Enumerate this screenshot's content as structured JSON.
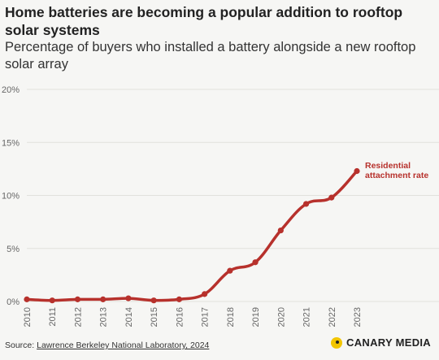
{
  "title": "Home batteries are becoming a popular addition to rooftop solar systems",
  "subtitle": "Percentage of buyers who installed a battery alongside a new rooftop solar array",
  "footer": {
    "source_label": "Source:",
    "source_link": "Lawrence Berkeley National Laboratory, 2024",
    "brand": "CANARY MEDIA"
  },
  "colors": {
    "line": "#b7312c",
    "grid": "#e1e1dc",
    "axis_text": "#666666",
    "background": "#f6f6f4",
    "brand_logo": "#f2c500"
  },
  "chart_data": {
    "type": "line",
    "x": [
      "2010",
      "2011",
      "2012",
      "2013",
      "2014",
      "2015",
      "2016",
      "2017",
      "2018",
      "2019",
      "2020",
      "2021",
      "2022",
      "2023"
    ],
    "series": [
      {
        "name": "Residential attachment rate",
        "values": [
          0.2,
          0.1,
          0.2,
          0.2,
          0.3,
          0.1,
          0.2,
          0.7,
          2.9,
          3.7,
          6.7,
          9.2,
          9.8,
          12.3
        ]
      }
    ],
    "y_ticks": [
      "0%",
      "5%",
      "10%",
      "15%",
      "20%"
    ],
    "ylim": [
      0,
      20
    ],
    "grid": true,
    "annotation": [
      "Residential",
      "attachment rate"
    ]
  }
}
